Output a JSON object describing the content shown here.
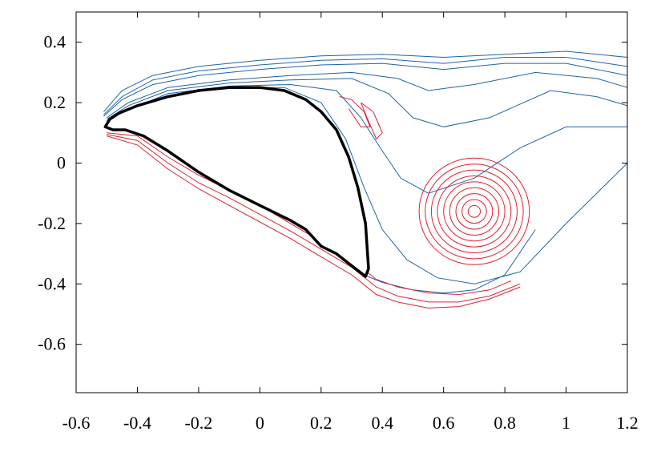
{
  "chart_data": {
    "type": "line",
    "title": "",
    "xlabel": "",
    "ylabel": "",
    "xlim": [
      -0.6,
      1.2
    ],
    "ylim": [
      -0.76,
      0.5
    ],
    "x_ticks": [
      -0.6,
      -0.4,
      -0.2,
      0,
      0.2,
      0.4,
      0.6,
      0.8,
      1,
      1.2
    ],
    "x_tick_labels": [
      "-0.6",
      "-0.4",
      "-0.2",
      "0",
      "0.2",
      "0.4",
      "0.6",
      "0.8",
      "1",
      "1.2"
    ],
    "y_ticks": [
      0.4,
      0.2,
      0,
      -0.2,
      -0.4,
      -0.6
    ],
    "y_tick_labels": [
      "0.4",
      "0.2",
      "0",
      "-0.2",
      "-0.4",
      "-0.6"
    ],
    "grid": false,
    "colors": {
      "positive": "#1f64a8",
      "negative": "#e0202e",
      "body": "#000000"
    },
    "body_outline": {
      "x": [
        -0.505,
        -0.49,
        -0.46,
        -0.4,
        -0.3,
        -0.2,
        -0.1,
        0.0,
        0.08,
        0.15,
        0.2,
        0.25,
        0.29,
        0.32,
        0.345,
        0.355,
        0.345,
        0.3,
        0.25,
        0.2,
        0.15,
        0.1,
        0.0,
        -0.1,
        -0.2,
        -0.3,
        -0.38,
        -0.44,
        -0.48,
        -0.505
      ],
      "y": [
        0.12,
        0.145,
        0.165,
        0.19,
        0.22,
        0.24,
        0.25,
        0.25,
        0.24,
        0.21,
        0.17,
        0.11,
        0.02,
        -0.08,
        -0.2,
        -0.35,
        -0.375,
        -0.34,
        -0.3,
        -0.275,
        -0.22,
        -0.19,
        -0.14,
        -0.09,
        -0.03,
        0.04,
        0.09,
        0.11,
        0.11,
        0.12
      ]
    },
    "positive_contours": [
      {
        "x": [
          -0.51,
          -0.45,
          -0.35,
          -0.2,
          0.0,
          0.2,
          0.4,
          0.6,
          0.8,
          1.0,
          1.2
        ],
        "y": [
          0.17,
          0.24,
          0.29,
          0.32,
          0.34,
          0.355,
          0.36,
          0.35,
          0.36,
          0.37,
          0.35
        ]
      },
      {
        "x": [
          -0.51,
          -0.45,
          -0.35,
          -0.2,
          0.0,
          0.2,
          0.4,
          0.6,
          0.8,
          1.0,
          1.2
        ],
        "y": [
          0.16,
          0.22,
          0.275,
          0.305,
          0.325,
          0.34,
          0.345,
          0.33,
          0.35,
          0.35,
          0.32
        ]
      },
      {
        "x": [
          -0.51,
          -0.45,
          -0.35,
          -0.2,
          0.0,
          0.2,
          0.4,
          0.6,
          0.8,
          1.0,
          1.2
        ],
        "y": [
          0.155,
          0.21,
          0.26,
          0.29,
          0.31,
          0.325,
          0.33,
          0.31,
          0.33,
          0.33,
          0.29
        ]
      },
      {
        "x": [
          -0.5,
          -0.43,
          -0.3,
          -0.1,
          0.1,
          0.3,
          0.45,
          0.55,
          0.7,
          0.9,
          1.1,
          1.2
        ],
        "y": [
          0.15,
          0.2,
          0.25,
          0.275,
          0.29,
          0.3,
          0.28,
          0.24,
          0.26,
          0.3,
          0.28,
          0.25
        ]
      },
      {
        "x": [
          -0.5,
          -0.43,
          -0.3,
          -0.1,
          0.1,
          0.3,
          0.42,
          0.5,
          0.6,
          0.75,
          0.95,
          1.1,
          1.2
        ],
        "y": [
          0.145,
          0.19,
          0.24,
          0.265,
          0.275,
          0.28,
          0.23,
          0.15,
          0.12,
          0.15,
          0.24,
          0.22,
          0.19
        ]
      },
      {
        "x": [
          -0.5,
          -0.42,
          -0.3,
          -0.1,
          0.1,
          0.25,
          0.33,
          0.4,
          0.46,
          0.55,
          0.7,
          0.85,
          1.0,
          1.2
        ],
        "y": [
          0.14,
          0.18,
          0.23,
          0.255,
          0.26,
          0.24,
          0.15,
          0.04,
          -0.05,
          -0.1,
          -0.05,
          0.05,
          0.12,
          0.12
        ]
      },
      {
        "x": [
          -0.5,
          -0.42,
          -0.3,
          -0.1,
          0.08,
          0.2,
          0.28,
          0.34,
          0.4,
          0.48,
          0.58,
          0.7,
          0.85,
          1.0,
          1.2
        ],
        "y": [
          0.13,
          0.17,
          0.22,
          0.25,
          0.25,
          0.2,
          0.08,
          -0.08,
          -0.22,
          -0.32,
          -0.38,
          -0.4,
          -0.36,
          -0.2,
          0.0
        ]
      },
      {
        "x": [
          0.34,
          0.4,
          0.5,
          0.6,
          0.7,
          0.8,
          0.9
        ],
        "y": [
          -0.37,
          -0.395,
          -0.42,
          -0.43,
          -0.42,
          -0.37,
          -0.22
        ]
      }
    ],
    "negative_contours": [
      {
        "x": [
          -0.5,
          -0.4,
          -0.3,
          -0.2,
          -0.1,
          0.0,
          0.1,
          0.2,
          0.3,
          0.38,
          0.45,
          0.55,
          0.65,
          0.75,
          0.82
        ],
        "y": [
          0.1,
          0.09,
          0.02,
          -0.04,
          -0.09,
          -0.14,
          -0.2,
          -0.26,
          -0.32,
          -0.385,
          -0.41,
          -0.43,
          -0.435,
          -0.42,
          -0.39
        ]
      },
      {
        "x": [
          -0.5,
          -0.4,
          -0.3,
          -0.2,
          -0.1,
          0.0,
          0.1,
          0.2,
          0.3,
          0.38,
          0.45,
          0.55,
          0.65,
          0.75,
          0.85
        ],
        "y": [
          0.095,
          0.075,
          0.0,
          -0.065,
          -0.115,
          -0.17,
          -0.225,
          -0.285,
          -0.345,
          -0.41,
          -0.44,
          -0.46,
          -0.46,
          -0.44,
          -0.4
        ]
      },
      {
        "x": [
          -0.5,
          -0.4,
          -0.3,
          -0.2,
          -0.1,
          0.0,
          0.1,
          0.2,
          0.3,
          0.38,
          0.45,
          0.55,
          0.65,
          0.75,
          0.85
        ],
        "y": [
          0.09,
          0.06,
          -0.02,
          -0.085,
          -0.14,
          -0.195,
          -0.25,
          -0.31,
          -0.37,
          -0.435,
          -0.46,
          -0.48,
          -0.475,
          -0.45,
          -0.41
        ]
      },
      {
        "x": [
          0.33,
          0.35,
          0.38,
          0.4,
          0.37,
          0.33
        ],
        "y": [
          0.2,
          0.15,
          0.08,
          0.1,
          0.17,
          0.2
        ]
      },
      {
        "x": [
          0.26,
          0.3,
          0.34,
          0.36,
          0.33,
          0.29
        ],
        "y": [
          0.22,
          0.21,
          0.17,
          0.12,
          0.12,
          0.18
        ]
      }
    ],
    "vortex": {
      "center": [
        0.7,
        -0.16
      ],
      "radii": [
        0.02,
        0.04,
        0.06,
        0.08,
        0.1,
        0.12,
        0.14,
        0.16,
        0.18
      ]
    }
  }
}
